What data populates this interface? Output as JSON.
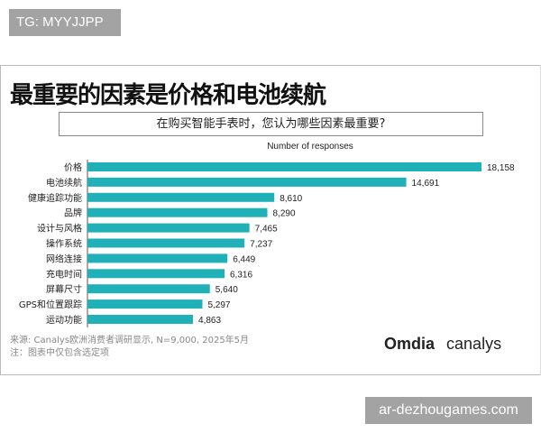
{
  "watermarks": {
    "top": "TG: MYYJJPP",
    "bottom": "ar-dezhougames.com"
  },
  "title": "最重要的因素是价格和电池续航",
  "question": "在购买智能手表时，您认为哪些因素最重要?",
  "footer": {
    "source": "来源: Canalys欧洲消费者调研显示, N=9,000, 2025年5月",
    "note": "注：图表中仅包含选定项"
  },
  "logos": [
    "Omdia",
    "canalys"
  ],
  "chart_data": {
    "type": "bar",
    "orientation": "horizontal",
    "xlabel": "Number of responses",
    "categories": [
      "价格",
      "电池续航",
      "健康追踪功能",
      "品牌",
      "设计与风格",
      "操作系统",
      "网络连接",
      "充电时间",
      "屏幕尺寸",
      "GPS和位置跟踪",
      "运动功能"
    ],
    "values": [
      18158,
      14691,
      8610,
      8290,
      7465,
      7237,
      6449,
      6316,
      5640,
      5297,
      4863
    ],
    "value_labels": [
      "18,158",
      "14,691",
      "8,610",
      "8,290",
      "7,465",
      "7,237",
      "6,449",
      "6,316",
      "5,640",
      "5,297",
      "4,863"
    ],
    "color": "#1fb0b8",
    "grid": false
  }
}
